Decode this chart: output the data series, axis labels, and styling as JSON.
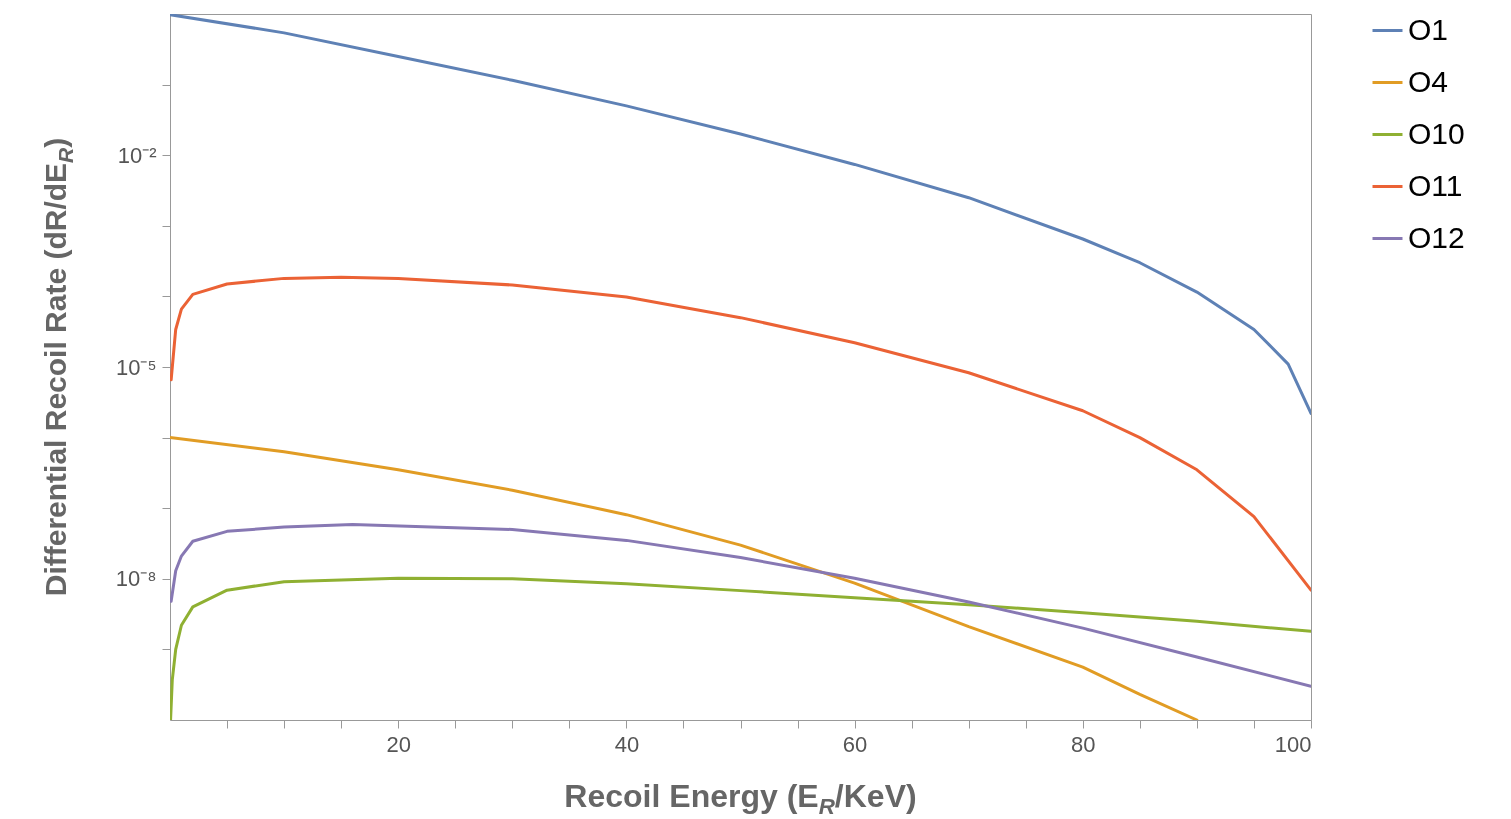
{
  "chart_data": {
    "type": "line",
    "xlabel": "Recoil Energy (E$_{R}$/KeV)",
    "ylabel": "Differential Recoil Rate (dR/dE$_{R}$)",
    "log": true,
    "grid": false,
    "legend": "right",
    "line_style": "solid",
    "xlim": [
      0,
      100
    ],
    "ylim": [
      1e-10,
      1
    ],
    "xticks": [
      {
        "value": 5,
        "label": null
      },
      {
        "value": 10,
        "label": null
      },
      {
        "value": 15,
        "label": null
      },
      20,
      {
        "value": 25,
        "label": null
      },
      {
        "value": 30,
        "label": null
      },
      {
        "value": 35,
        "label": null
      },
      40,
      {
        "value": 45,
        "label": null
      },
      {
        "value": 50,
        "label": null
      },
      {
        "value": 55,
        "label": null
      },
      60,
      {
        "value": 65,
        "label": null
      },
      {
        "value": 70,
        "label": null
      },
      {
        "value": 75,
        "label": null
      },
      80,
      {
        "value": 85,
        "label": null
      },
      {
        "value": 90,
        "label": null
      },
      {
        "value": 95,
        "label": null
      },
      100
    ],
    "yticks": [
      {
        "value": 1e-09,
        "label": null
      },
      {
        "value": 1e-08,
        "label": "10⁻⁸"
      },
      {
        "value": 1e-07,
        "label": null
      },
      {
        "value": 1e-06,
        "label": null
      },
      {
        "value": 1e-05,
        "label": "10⁻⁵"
      },
      {
        "value": 0.0001,
        "label": null
      },
      {
        "value": 0.001,
        "label": null
      },
      {
        "value": 0.01,
        "label": "10⁻²"
      },
      {
        "value": 0.1,
        "label": null
      }
    ],
    "series": [
      {
        "name": "O1",
        "color": "#5e81b5",
        "x": [
          0,
          10,
          20,
          30,
          40,
          50,
          60,
          70,
          80,
          85,
          90,
          95,
          98,
          100
        ],
        "values": [
          0.98,
          0.54,
          0.25,
          0.115,
          0.05,
          0.02,
          0.0074,
          0.0025,
          0.00065,
          0.0003,
          0.000115,
          3.4e-05,
          1.1e-05,
          2.2e-06
        ]
      },
      {
        "name": "O4",
        "color": "#e19c24",
        "x": [
          0,
          10,
          20,
          30,
          40,
          50,
          60,
          70,
          80,
          85,
          90
        ],
        "values": [
          1e-06,
          6.3e-07,
          3.5e-07,
          1.8e-07,
          8.1e-08,
          3e-08,
          8.7e-09,
          2.1e-09,
          5.6e-10,
          2.3e-10,
          1e-10
        ]
      },
      {
        "name": "O10",
        "color": "#8fb032",
        "x": [
          0.05,
          0.2,
          0.5,
          1,
          2,
          5,
          10,
          20,
          30,
          40,
          50,
          60,
          70,
          80,
          90,
          100
        ],
        "values": [
          1e-10,
          3.7e-10,
          1e-09,
          2.2e-09,
          4e-09,
          6.9e-09,
          9.1e-09,
          1.02e-08,
          1e-08,
          8.5e-09,
          6.8e-09,
          5.4e-09,
          4.3e-09,
          3.3e-09,
          2.5e-09,
          1.8e-09
        ]
      },
      {
        "name": "O11",
        "color": "#eb6235",
        "x": [
          0.1,
          0.5,
          1,
          2,
          5,
          10,
          15,
          20,
          30,
          40,
          50,
          60,
          70,
          80,
          85,
          90,
          95,
          100
        ],
        "values": [
          6.6e-06,
          3.4e-05,
          6.6e-05,
          0.000107,
          0.00015,
          0.00018,
          0.000186,
          0.00018,
          0.000145,
          9.8e-05,
          5e-05,
          2.2e-05,
          8.3e-06,
          2.4e-06,
          1e-06,
          3.5e-07,
          7.6e-08,
          6.9e-09
        ]
      },
      {
        "name": "O12",
        "color": "#8778b3",
        "x": [
          0.1,
          0.5,
          1,
          2,
          5,
          10,
          16,
          30,
          40,
          50,
          60,
          70,
          80,
          90,
          100
        ],
        "values": [
          4.8e-09,
          1.3e-08,
          2.1e-08,
          3.4e-08,
          4.7e-08,
          5.4e-08,
          5.9e-08,
          5e-08,
          3.5e-08,
          2e-08,
          1.02e-08,
          4.7e-09,
          2e-09,
          7.8e-10,
          3e-10
        ]
      }
    ]
  }
}
